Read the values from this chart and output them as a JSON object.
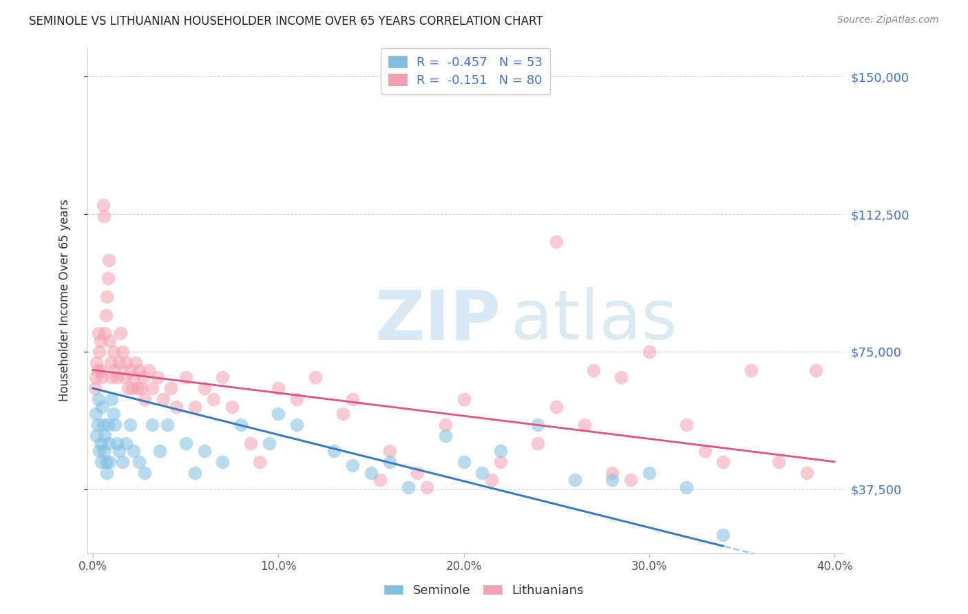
{
  "title": "SEMINOLE VS LITHUANIAN HOUSEHOLDER INCOME OVER 65 YEARS CORRELATION CHART",
  "source": "Source: ZipAtlas.com",
  "xlabel_vals": [
    0.0,
    10.0,
    20.0,
    30.0,
    40.0
  ],
  "ylabel_ticks": [
    "$37,500",
    "$75,000",
    "$112,500",
    "$150,000"
  ],
  "ylabel_vals": [
    37500,
    75000,
    112500,
    150000
  ],
  "ylabel_label": "Householder Income Over 65 years",
  "xlim": [
    0.0,
    40.0
  ],
  "ylim": [
    20000,
    158000
  ],
  "seminole_R": -0.457,
  "seminole_N": 53,
  "lithuanian_R": -0.151,
  "lithuanian_N": 80,
  "seminole_color": "#7fbfdf",
  "lithuanian_color": "#f4a0b0",
  "seminole_line_color": "#3a7abf",
  "lithuanian_line_color": "#e05080",
  "seminole_dash_color": "#a0c8e8",
  "background_color": "#ffffff",
  "grid_color": "#d0d0d0",
  "legend_label_seminole": "Seminole",
  "legend_label_lithuanian": "Lithuanians",
  "seminole_x": [
    0.15,
    0.2,
    0.25,
    0.3,
    0.35,
    0.4,
    0.45,
    0.5,
    0.55,
    0.6,
    0.65,
    0.7,
    0.75,
    0.8,
    0.85,
    0.9,
    1.0,
    1.1,
    1.2,
    1.3,
    1.4,
    1.6,
    1.8,
    2.0,
    2.2,
    2.5,
    2.8,
    3.2,
    3.6,
    4.0,
    5.0,
    5.5,
    6.0,
    7.0,
    8.0,
    9.5,
    10.0,
    11.0,
    13.0,
    14.0,
    15.0,
    16.0,
    17.0,
    19.0,
    20.0,
    21.0,
    22.0,
    24.0,
    26.0,
    28.0,
    30.0,
    32.0,
    34.0
  ],
  "seminole_y": [
    58000,
    52000,
    55000,
    62000,
    48000,
    50000,
    45000,
    60000,
    55000,
    48000,
    52000,
    45000,
    42000,
    55000,
    50000,
    45000,
    62000,
    58000,
    55000,
    50000,
    48000,
    45000,
    50000,
    55000,
    48000,
    45000,
    42000,
    55000,
    48000,
    55000,
    50000,
    42000,
    48000,
    45000,
    55000,
    50000,
    58000,
    55000,
    48000,
    44000,
    42000,
    45000,
    38000,
    52000,
    45000,
    42000,
    48000,
    55000,
    40000,
    40000,
    42000,
    38000,
    25000
  ],
  "lithuanian_x": [
    0.1,
    0.15,
    0.2,
    0.25,
    0.3,
    0.35,
    0.4,
    0.45,
    0.5,
    0.55,
    0.6,
    0.65,
    0.7,
    0.75,
    0.8,
    0.85,
    0.9,
    0.95,
    1.0,
    1.1,
    1.2,
    1.3,
    1.4,
    1.5,
    1.6,
    1.7,
    1.8,
    1.9,
    2.0,
    2.1,
    2.2,
    2.3,
    2.4,
    2.5,
    2.6,
    2.7,
    2.8,
    3.0,
    3.2,
    3.5,
    3.8,
    4.2,
    4.5,
    5.0,
    5.5,
    6.0,
    6.5,
    7.0,
    7.5,
    8.5,
    9.0,
    10.0,
    11.0,
    12.0,
    13.5,
    14.0,
    15.5,
    16.0,
    17.5,
    18.0,
    19.0,
    20.0,
    21.5,
    22.0,
    24.0,
    25.0,
    26.5,
    28.0,
    29.0,
    30.0,
    32.0,
    33.0,
    34.0,
    35.5,
    37.0,
    38.5,
    25.0,
    27.0,
    28.5,
    39.0
  ],
  "lithuanian_y": [
    65000,
    68000,
    72000,
    70000,
    80000,
    75000,
    78000,
    70000,
    68000,
    115000,
    112000,
    80000,
    85000,
    90000,
    95000,
    100000,
    78000,
    72000,
    68000,
    75000,
    70000,
    68000,
    72000,
    80000,
    75000,
    68000,
    72000,
    65000,
    70000,
    65000,
    68000,
    72000,
    65000,
    70000,
    65000,
    68000,
    62000,
    70000,
    65000,
    68000,
    62000,
    65000,
    60000,
    68000,
    60000,
    65000,
    62000,
    68000,
    60000,
    50000,
    45000,
    65000,
    62000,
    68000,
    58000,
    62000,
    40000,
    48000,
    42000,
    38000,
    55000,
    62000,
    40000,
    45000,
    50000,
    60000,
    55000,
    42000,
    40000,
    75000,
    55000,
    48000,
    45000,
    70000,
    45000,
    42000,
    105000,
    70000,
    68000,
    70000
  ]
}
